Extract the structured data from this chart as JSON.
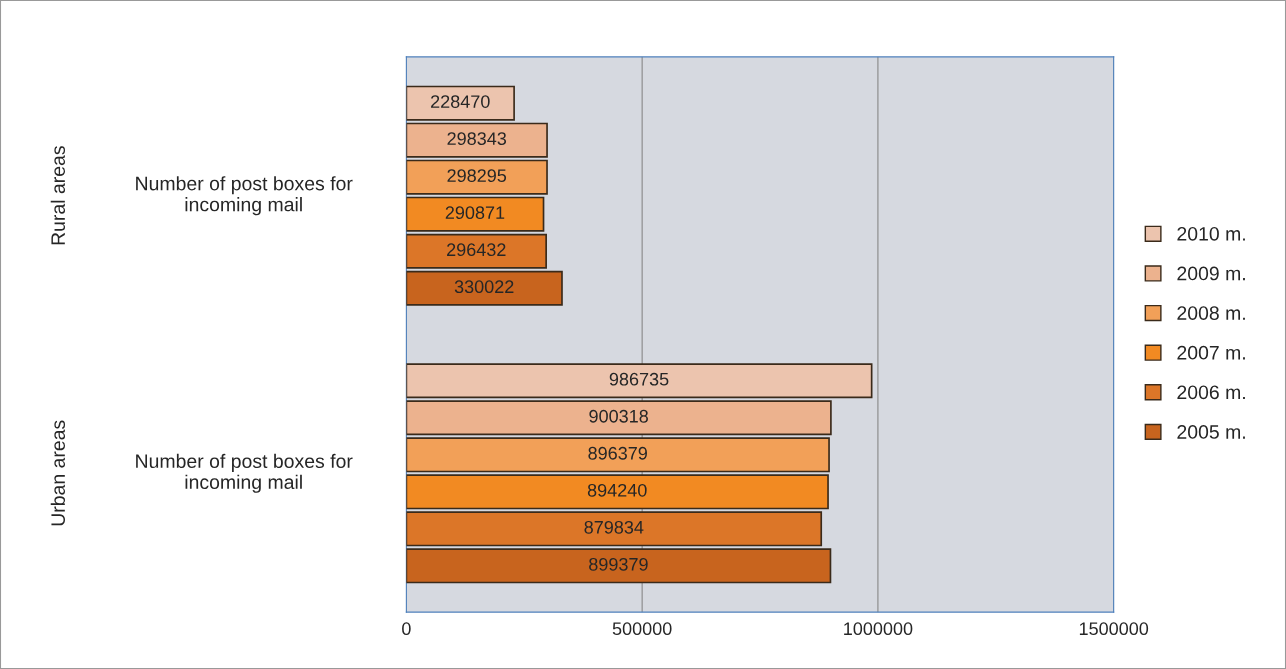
{
  "chart_data": {
    "type": "bar",
    "orientation": "horizontal",
    "categories": [
      "Number of post boxes for\nincoming mail",
      "Number of post boxes for\nincoming mail"
    ],
    "annotations": [
      "Rural areas",
      "Urban areas"
    ],
    "series": [
      {
        "name": "2005 m.",
        "color": "#c8641e",
        "values": [
          330022,
          899379
        ]
      },
      {
        "name": "2006 m.",
        "color": "#dc7628",
        "values": [
          296432,
          879834
        ]
      },
      {
        "name": "2007 m.",
        "color": "#f28a22",
        "values": [
          290871,
          894240
        ]
      },
      {
        "name": "2008 m.",
        "color": "#f2a058",
        "values": [
          298295,
          896379
        ]
      },
      {
        "name": "2009 m.",
        "color": "#ecb28e",
        "values": [
          298343,
          900318
        ]
      },
      {
        "name": "2010 m.",
        "color": "#ecc4ae",
        "values": [
          228470,
          986735
        ]
      }
    ],
    "xlim": [
      0,
      1500000
    ],
    "xticks": [
      0,
      500000,
      1000000,
      1500000
    ],
    "grid": "x",
    "legend": "right",
    "data_labels": true
  }
}
